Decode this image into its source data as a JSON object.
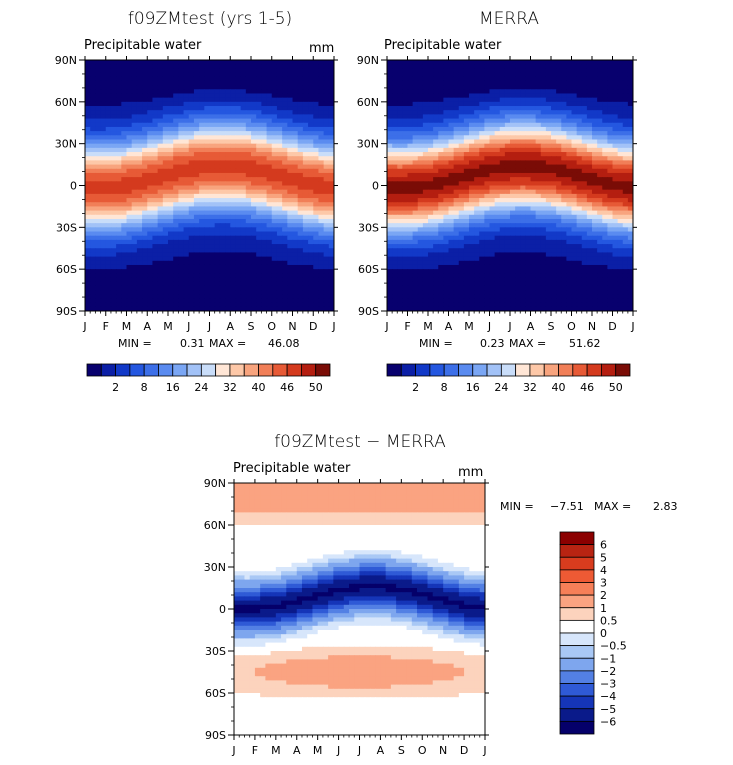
{
  "chart_data": [
    {
      "type": "heatmap",
      "title": "f09ZMtest (yrs 1-5)",
      "subtitle": "Precipitable water",
      "unit": "mm",
      "x_ticks": [
        "J",
        "F",
        "M",
        "A",
        "M",
        "J",
        "J",
        "A",
        "S",
        "O",
        "N",
        "D",
        "J"
      ],
      "y_ticks": [
        "90N",
        "60N",
        "30N",
        "0",
        "30S",
        "60S",
        "90S"
      ],
      "min_label": "MIN =",
      "min": "0.31",
      "max_label": "MAX =",
      "max": "46.08",
      "colorbar_levels": [
        "2",
        "8",
        "16",
        "24",
        "32",
        "40",
        "46",
        "50"
      ],
      "peak_value": 46
    },
    {
      "type": "heatmap",
      "title": "MERRA",
      "subtitle": "Precipitable water",
      "unit": "mm",
      "x_ticks": [
        "J",
        "F",
        "M",
        "A",
        "M",
        "J",
        "J",
        "A",
        "S",
        "O",
        "N",
        "D",
        "J"
      ],
      "y_ticks": [
        "90N",
        "60N",
        "30N",
        "0",
        "30S",
        "60S",
        "90S"
      ],
      "min_label": "MIN =",
      "min": "0.23",
      "max_label": "MAX =",
      "max": "51.62",
      "colorbar_levels": [
        "2",
        "8",
        "16",
        "24",
        "32",
        "40",
        "46",
        "50"
      ],
      "peak_value": 52
    },
    {
      "type": "heatmap",
      "title": "f09ZMtest − MERRA",
      "subtitle": "Precipitable water",
      "unit": "mm",
      "x_ticks": [
        "J",
        "F",
        "M",
        "A",
        "M",
        "J",
        "J",
        "A",
        "S",
        "O",
        "N",
        "D",
        "J"
      ],
      "y_ticks": [
        "90N",
        "60N",
        "30N",
        "0",
        "30S",
        "60S",
        "90S"
      ],
      "min_label": "MIN =",
      "min": "−7.51",
      "max_label": "MAX =",
      "max": "2.83",
      "colorbar_levels": [
        "6",
        "5",
        "4",
        "3",
        "2",
        "1",
        "0.5",
        "0",
        "−0.5",
        "−1",
        "−2",
        "−3",
        "−4",
        "−5",
        "−6"
      ]
    }
  ],
  "colors": {
    "field_scale": [
      "#08006e",
      "#0b1fa6",
      "#1239c8",
      "#2457e0",
      "#3c6fe8",
      "#5a8bf0",
      "#7aa6f4",
      "#a2c2f7",
      "#c9ddf9",
      "#ffe6d6",
      "#fdc8a8",
      "#f8a47e",
      "#f17f58",
      "#e75a36",
      "#d43a1e",
      "#b41e10",
      "#7a0c06"
    ],
    "diff_scale": [
      "#8b0000",
      "#b82412",
      "#d83c1e",
      "#ee5a34",
      "#f67f58",
      "#faa381",
      "#fcd3bd",
      "#ffffff",
      "#d7e6fb",
      "#a9c8f5",
      "#7ea6ee",
      "#5380e4",
      "#2f5ad6",
      "#1535b8",
      "#0a1a8a",
      "#05006a"
    ]
  }
}
